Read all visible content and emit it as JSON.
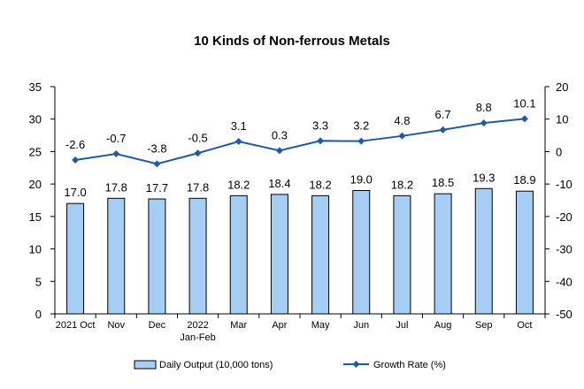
{
  "chart_data": {
    "type": "bar+line",
    "title": "10 Kinds of Non-ferrous Metals",
    "categories": [
      "2021 Oct",
      "Nov",
      "Dec",
      "2022 Jan-Feb",
      "Mar",
      "Apr",
      "May",
      "Jun",
      "Jul",
      "Aug",
      "Sep",
      "Oct"
    ],
    "series": [
      {
        "name": "Daily Output (10,000 tons)",
        "type": "bar",
        "axis": "left",
        "values": [
          17.0,
          17.8,
          17.7,
          17.8,
          18.2,
          18.4,
          18.2,
          19.0,
          18.2,
          18.5,
          19.3,
          18.9
        ],
        "labels": [
          "17.0",
          "17.8",
          "17.7",
          "17.8",
          "18.2",
          "18.4",
          "18.2",
          "19.0",
          "18.2",
          "18.5",
          "19.3",
          "18.9"
        ],
        "color": "#a6cef5",
        "border": "#000000"
      },
      {
        "name": "Growth Rate (%)",
        "type": "line",
        "axis": "right",
        "values": [
          -2.6,
          -0.7,
          -3.8,
          -0.5,
          3.1,
          0.3,
          3.3,
          3.2,
          4.8,
          6.7,
          8.8,
          10.1
        ],
        "labels": [
          "-2.6",
          "-0.7",
          "-3.8",
          "-0.5",
          "3.1",
          "0.3",
          "3.3",
          "3.2",
          "4.8",
          "6.7",
          "8.8",
          "10.1"
        ],
        "color": "#1f5aa6"
      }
    ],
    "y_left": {
      "min": 0,
      "max": 35,
      "ticks": [
        "0",
        "5",
        "10",
        "15",
        "20",
        "25",
        "30",
        "35"
      ]
    },
    "y_right": {
      "min": -50,
      "max": 20,
      "ticks": [
        "-50",
        "-40",
        "-30",
        "-20",
        "-10",
        "0",
        "10",
        "20"
      ]
    },
    "grid": false,
    "legend_position": "bottom"
  }
}
